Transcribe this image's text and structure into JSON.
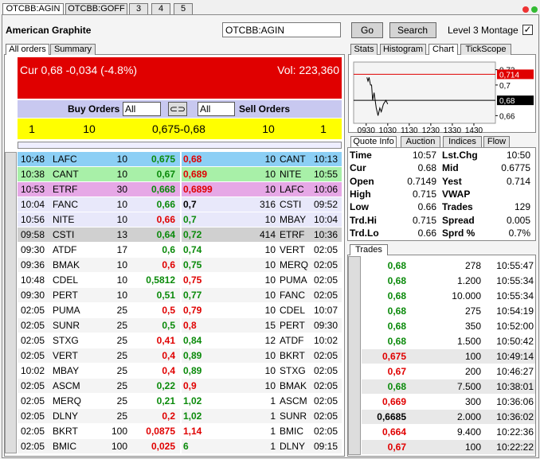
{
  "tabs": [
    "OTCBB:AGIN",
    "OTCBB:GOFF",
    "3",
    "4",
    "5"
  ],
  "header": {
    "name": "American Graphite",
    "input": "OTCBB:AGIN",
    "go": "Go",
    "search": "Search",
    "montage": "Level 3 Montage"
  },
  "left_tabs": [
    "All orders",
    "Summary"
  ],
  "quote_bar": {
    "cur": "Cur 0,68 -0,034 (-4.8%)",
    "vol": "Vol: 223,360"
  },
  "filter": {
    "buy": "Buy Orders",
    "buy_select": "All",
    "sell_select": "All",
    "sell": "Sell Orders"
  },
  "best": [
    "1",
    "10",
    "0,675",
    "-0,68",
    "10",
    "1"
  ],
  "orders": [
    {
      "bid": [
        "10:48",
        "LAFC",
        "10",
        "0,675"
      ],
      "bid_color": "#0a8a0a",
      "ask": [
        "0,68",
        "10",
        "CANT",
        "10:13"
      ],
      "ask_color": "#e00000",
      "bg": "#8ccff5"
    },
    {
      "bid": [
        "10:38",
        "CANT",
        "10",
        "0,67"
      ],
      "bid_color": "#0a8a0a",
      "ask": [
        "0,689",
        "10",
        "NITE",
        "10:55"
      ],
      "ask_color": "#e00000",
      "bg": "#a8f0a8"
    },
    {
      "bid": [
        "10:53",
        "ETRF",
        "30",
        "0,668"
      ],
      "bid_color": "#0a8a0a",
      "ask": [
        "0,6899",
        "10",
        "LAFC",
        "10:06"
      ],
      "ask_color": "#e00000",
      "bg": "#e6a8e6"
    },
    {
      "bid": [
        "10:04",
        "FANC",
        "10",
        "0,66"
      ],
      "bid_color": "#0a8a0a",
      "ask": [
        "0,7",
        "316",
        "CSTI",
        "09:52"
      ],
      "ask_color": "#000000",
      "bg": "#e8e8fa"
    },
    {
      "bid": [
        "10:56",
        "NITE",
        "10",
        "0,66"
      ],
      "bid_color": "#e00000",
      "ask": [
        "0,7",
        "10",
        "MBAY",
        "10:04"
      ],
      "ask_color": "#0a8a0a",
      "bg": "#e8e8fa"
    },
    {
      "bid": [
        "09:58",
        "CSTI",
        "13",
        "0,64"
      ],
      "bid_color": "#0a8a0a",
      "ask": [
        "0,72",
        "414",
        "ETRF",
        "10:36"
      ],
      "ask_color": "#0a8a0a",
      "bg": "#d0d0d0"
    },
    {
      "bid": [
        "09:30",
        "ATDF",
        "17",
        "0,6"
      ],
      "bid_color": "#0a8a0a",
      "ask": [
        "0,74",
        "10",
        "VERT",
        "02:05"
      ],
      "ask_color": "#0a8a0a",
      "bg": "#ffffff"
    },
    {
      "bid": [
        "09:36",
        "BMAK",
        "10",
        "0,6"
      ],
      "bid_color": "#e00000",
      "ask": [
        "0,75",
        "10",
        "MERQ",
        "02:05"
      ],
      "ask_color": "#0a8a0a",
      "bg": "#f4f4f4"
    },
    {
      "bid": [
        "10:48",
        "CDEL",
        "10",
        "0,5812"
      ],
      "bid_color": "#0a8a0a",
      "ask": [
        "0,75",
        "10",
        "PUMA",
        "02:05"
      ],
      "ask_color": "#e00000",
      "bg": "#ffffff"
    },
    {
      "bid": [
        "09:30",
        "PERT",
        "10",
        "0,51"
      ],
      "bid_color": "#0a8a0a",
      "ask": [
        "0,77",
        "10",
        "FANC",
        "02:05"
      ],
      "ask_color": "#0a8a0a",
      "bg": "#f4f4f4"
    },
    {
      "bid": [
        "02:05",
        "PUMA",
        "25",
        "0,5"
      ],
      "bid_color": "#e00000",
      "ask": [
        "0,79",
        "10",
        "CDEL",
        "10:07"
      ],
      "ask_color": "#e00000",
      "bg": "#ffffff"
    },
    {
      "bid": [
        "02:05",
        "SUNR",
        "25",
        "0,5"
      ],
      "bid_color": "#0a8a0a",
      "ask": [
        "0,8",
        "15",
        "PERT",
        "09:30"
      ],
      "ask_color": "#e00000",
      "bg": "#f4f4f4"
    },
    {
      "bid": [
        "02:05",
        "STXG",
        "25",
        "0,41"
      ],
      "bid_color": "#e00000",
      "ask": [
        "0,84",
        "12",
        "ATDF",
        "10:02"
      ],
      "ask_color": "#0a8a0a",
      "bg": "#ffffff"
    },
    {
      "bid": [
        "02:05",
        "VERT",
        "25",
        "0,4"
      ],
      "bid_color": "#e00000",
      "ask": [
        "0,89",
        "10",
        "BKRT",
        "02:05"
      ],
      "ask_color": "#0a8a0a",
      "bg": "#f4f4f4"
    },
    {
      "bid": [
        "10:02",
        "MBAY",
        "25",
        "0,4"
      ],
      "bid_color": "#e00000",
      "ask": [
        "0,89",
        "10",
        "STXG",
        "02:05"
      ],
      "ask_color": "#0a8a0a",
      "bg": "#ffffff"
    },
    {
      "bid": [
        "02:05",
        "ASCM",
        "25",
        "0,22"
      ],
      "bid_color": "#0a8a0a",
      "ask": [
        "0,9",
        "10",
        "BMAK",
        "02:05"
      ],
      "ask_color": "#e00000",
      "bg": "#f4f4f4"
    },
    {
      "bid": [
        "02:05",
        "MERQ",
        "25",
        "0,21"
      ],
      "bid_color": "#0a8a0a",
      "ask": [
        "1,02",
        "1",
        "ASCM",
        "02:05"
      ],
      "ask_color": "#0a8a0a",
      "bg": "#ffffff"
    },
    {
      "bid": [
        "02:05",
        "DLNY",
        "25",
        "0,2"
      ],
      "bid_color": "#e00000",
      "ask": [
        "1,02",
        "1",
        "SUNR",
        "02:05"
      ],
      "ask_color": "#0a8a0a",
      "bg": "#f4f4f4"
    },
    {
      "bid": [
        "02:05",
        "BKRT",
        "100",
        "0,0875"
      ],
      "bid_color": "#e00000",
      "ask": [
        "1,14",
        "1",
        "BMIC",
        "02:05"
      ],
      "ask_color": "#e00000",
      "bg": "#ffffff"
    },
    {
      "bid": [
        "02:05",
        "BMIC",
        "100",
        "0,025"
      ],
      "bid_color": "#e00000",
      "ask": [
        "6",
        "1",
        "DLNY",
        "09:15"
      ],
      "ask_color": "#0a8a0a",
      "bg": "#f4f4f4"
    }
  ],
  "right_tabs": [
    "Stats",
    "Histogram",
    "Chart",
    "TickScope"
  ],
  "chart_data": {
    "type": "line",
    "color": "#000000",
    "x": [
      572,
      575,
      578,
      582,
      585,
      588,
      592,
      598,
      603,
      608,
      612,
      618,
      625,
      630
    ],
    "values": [
      0.71,
      0.705,
      0.71,
      0.7,
      0.7,
      0.68,
      0.69,
      0.67,
      0.66,
      0.67,
      0.665,
      0.675,
      0.68,
      0.675
    ],
    "xlim": [
      535,
      930
    ],
    "ylim": [
      0.65,
      0.73
    ],
    "xticks": [
      {
        "value": 570,
        "label": "0930"
      },
      {
        "value": 630,
        "label": "1030"
      },
      {
        "value": 690,
        "label": "1130"
      },
      {
        "value": 750,
        "label": "1230"
      },
      {
        "value": 810,
        "label": "1330"
      },
      {
        "value": 870,
        "label": "1430"
      }
    ],
    "yticks": [
      {
        "value": 0.72,
        "label": "0,72"
      },
      {
        "value": 0.7,
        "label": "0,7"
      },
      {
        "value": 0.66,
        "label": "0,66"
      }
    ],
    "ref_lines": [
      {
        "value": 0.714,
        "label": "0,714",
        "color": "#e00000"
      },
      {
        "value": 0.68,
        "label": "0,68",
        "color": "#000000"
      }
    ]
  },
  "quote_tabs": [
    "Quote Info",
    "Auction",
    "Indices",
    "Flow"
  ],
  "quote_info": [
    [
      "Time",
      "10:57",
      "Lst.Chg",
      "10:50"
    ],
    [
      "Cur",
      "0.68",
      "Mid",
      "0.6775"
    ],
    [
      "Open",
      "0.7149",
      "Yest",
      "0.714"
    ],
    [
      "High",
      "0.715",
      "VWAP"
    ],
    [
      "Low",
      "0.66",
      "Trades",
      "129"
    ],
    [
      "Trd.Hi",
      "0.715",
      "Spread",
      "0.005"
    ],
    [
      "Trd.Lo",
      "0.66",
      "Sprd %",
      "0.7%"
    ]
  ],
  "trades_tab": "Trades",
  "trades": [
    {
      "cells": [
        "0,68",
        "278",
        "10:55:47"
      ],
      "color": "#0a8a0a",
      "bg": "#ffffff"
    },
    {
      "cells": [
        "0,68",
        "1.200",
        "10:55:34"
      ],
      "color": "#0a8a0a",
      "bg": "#ffffff"
    },
    {
      "cells": [
        "0,68",
        "10.000",
        "10:55:34"
      ],
      "color": "#0a8a0a",
      "bg": "#ffffff"
    },
    {
      "cells": [
        "0,68",
        "275",
        "10:54:19"
      ],
      "color": "#0a8a0a",
      "bg": "#ffffff"
    },
    {
      "cells": [
        "0,68",
        "350",
        "10:52:00"
      ],
      "color": "#0a8a0a",
      "bg": "#ffffff"
    },
    {
      "cells": [
        "0,68",
        "1.500",
        "10:50:42"
      ],
      "color": "#0a8a0a",
      "bg": "#ffffff"
    },
    {
      "cells": [
        "0,675",
        "100",
        "10:49:14"
      ],
      "color": "#e00000",
      "bg": "#e8e8e8"
    },
    {
      "cells": [
        "0,67",
        "200",
        "10:46:27"
      ],
      "color": "#e00000",
      "bg": "#ffffff"
    },
    {
      "cells": [
        "0,68",
        "7.500",
        "10:38:01"
      ],
      "color": "#0a8a0a",
      "bg": "#e8e8e8"
    },
    {
      "cells": [
        "0,669",
        "300",
        "10:36:06"
      ],
      "color": "#e00000",
      "bg": "#ffffff"
    },
    {
      "cells": [
        "0,6685",
        "2.000",
        "10:36:02"
      ],
      "color": "#000000",
      "bg": "#e8e8e8"
    },
    {
      "cells": [
        "0,664",
        "9.400",
        "10:22:36"
      ],
      "color": "#e00000",
      "bg": "#ffffff"
    },
    {
      "cells": [
        "0,67",
        "100",
        "10:22:22"
      ],
      "color": "#e00000",
      "bg": "#e8e8e8"
    }
  ]
}
